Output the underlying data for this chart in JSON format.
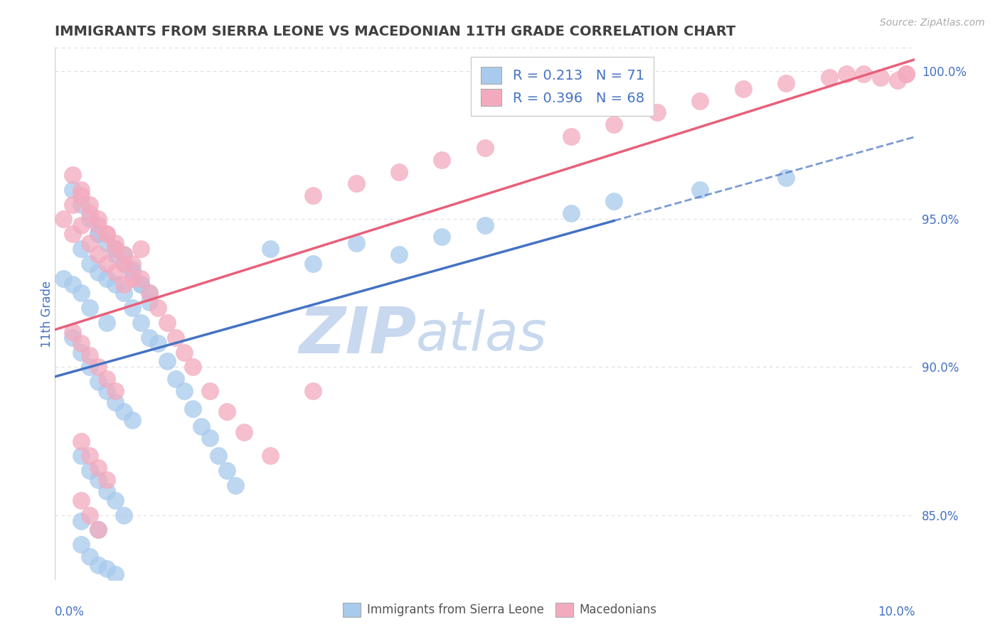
{
  "title": "IMMIGRANTS FROM SIERRA LEONE VS MACEDONIAN 11TH GRADE CORRELATION CHART",
  "source": "Source: ZipAtlas.com",
  "ylabel": "11th Grade",
  "xlim": [
    0.0,
    0.1
  ],
  "ylim": [
    0.828,
    1.008
  ],
  "right_ytick_vals": [
    0.85,
    0.9,
    0.95,
    1.0
  ],
  "right_ytick_labels": [
    "85.0%",
    "90.0%",
    "95.0%",
    "100.0%"
  ],
  "blue_color": "#A8CAED",
  "pink_color": "#F4AABE",
  "blue_line_color": "#4472C4",
  "pink_line_color": "#E8607A",
  "title_color": "#404040",
  "axis_label_color": "#4472C4",
  "watermark_zip_color": "#C8D8EE",
  "watermark_atlas_color": "#C8D8EE",
  "grid_color": "#DDDDDD",
  "border_color": "#CCCCCC",
  "blue_R": 0.213,
  "blue_N": 71,
  "pink_R": 0.396,
  "pink_N": 68,
  "blue_line_solid_end": 0.065,
  "blue_scatter_x": [
    0.001,
    0.002,
    0.003,
    0.003,
    0.004,
    0.004,
    0.005,
    0.005,
    0.006,
    0.006,
    0.007,
    0.007,
    0.008,
    0.008,
    0.009,
    0.009,
    0.01,
    0.01,
    0.011,
    0.011,
    0.012,
    0.013,
    0.014,
    0.015,
    0.016,
    0.017,
    0.018,
    0.019,
    0.02,
    0.021,
    0.002,
    0.003,
    0.004,
    0.005,
    0.006,
    0.007,
    0.008,
    0.009,
    0.01,
    0.011,
    0.002,
    0.003,
    0.004,
    0.005,
    0.006,
    0.007,
    0.008,
    0.009,
    0.003,
    0.004,
    0.005,
    0.006,
    0.007,
    0.008,
    0.003,
    0.004,
    0.005,
    0.006,
    0.007,
    0.025,
    0.03,
    0.035,
    0.04,
    0.045,
    0.05,
    0.06,
    0.065,
    0.075,
    0.085,
    0.003,
    0.005
  ],
  "blue_scatter_y": [
    0.93,
    0.928,
    0.925,
    0.94,
    0.935,
    0.92,
    0.932,
    0.945,
    0.93,
    0.915,
    0.928,
    0.94,
    0.925,
    0.938,
    0.92,
    0.933,
    0.915,
    0.928,
    0.91,
    0.922,
    0.908,
    0.902,
    0.896,
    0.892,
    0.886,
    0.88,
    0.876,
    0.87,
    0.865,
    0.86,
    0.96,
    0.955,
    0.95,
    0.945,
    0.942,
    0.938,
    0.935,
    0.932,
    0.928,
    0.925,
    0.91,
    0.905,
    0.9,
    0.895,
    0.892,
    0.888,
    0.885,
    0.882,
    0.87,
    0.865,
    0.862,
    0.858,
    0.855,
    0.85,
    0.84,
    0.836,
    0.833,
    0.832,
    0.83,
    0.94,
    0.935,
    0.942,
    0.938,
    0.944,
    0.948,
    0.952,
    0.956,
    0.96,
    0.964,
    0.848,
    0.845
  ],
  "pink_scatter_x": [
    0.001,
    0.002,
    0.002,
    0.003,
    0.003,
    0.004,
    0.004,
    0.005,
    0.005,
    0.006,
    0.006,
    0.007,
    0.007,
    0.008,
    0.008,
    0.009,
    0.01,
    0.01,
    0.011,
    0.012,
    0.013,
    0.014,
    0.015,
    0.016,
    0.018,
    0.02,
    0.022,
    0.025,
    0.002,
    0.003,
    0.004,
    0.005,
    0.006,
    0.007,
    0.008,
    0.009,
    0.002,
    0.003,
    0.004,
    0.005,
    0.006,
    0.007,
    0.003,
    0.004,
    0.005,
    0.006,
    0.003,
    0.004,
    0.005,
    0.03,
    0.035,
    0.04,
    0.045,
    0.05,
    0.06,
    0.065,
    0.07,
    0.075,
    0.08,
    0.085,
    0.09,
    0.092,
    0.094,
    0.096,
    0.098,
    0.099,
    0.099,
    0.03
  ],
  "pink_scatter_y": [
    0.95,
    0.955,
    0.945,
    0.958,
    0.948,
    0.952,
    0.942,
    0.948,
    0.938,
    0.945,
    0.935,
    0.942,
    0.932,
    0.938,
    0.928,
    0.935,
    0.93,
    0.94,
    0.925,
    0.92,
    0.915,
    0.91,
    0.905,
    0.9,
    0.892,
    0.885,
    0.878,
    0.87,
    0.965,
    0.96,
    0.955,
    0.95,
    0.945,
    0.94,
    0.935,
    0.93,
    0.912,
    0.908,
    0.904,
    0.9,
    0.896,
    0.892,
    0.875,
    0.87,
    0.866,
    0.862,
    0.855,
    0.85,
    0.845,
    0.958,
    0.962,
    0.966,
    0.97,
    0.974,
    0.978,
    0.982,
    0.986,
    0.99,
    0.994,
    0.996,
    0.998,
    0.999,
    0.999,
    0.998,
    0.997,
    0.999,
    0.999,
    0.892
  ]
}
